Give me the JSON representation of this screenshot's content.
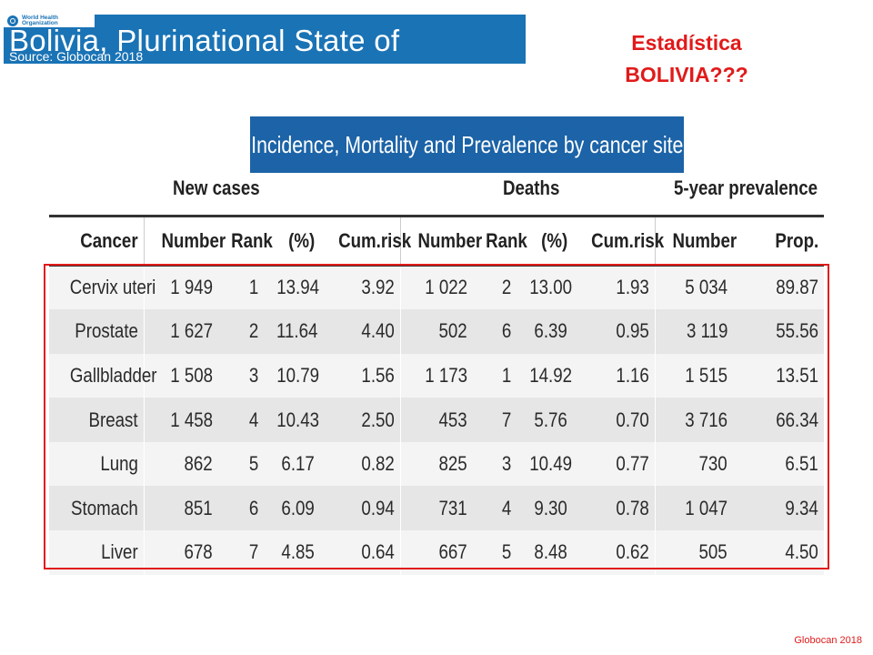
{
  "banner": {
    "who_line1": "World Health",
    "who_line2": "Organization",
    "country": "Bolivia, Plurinational State of",
    "source": "Source: Globocan 2018"
  },
  "slide_title": {
    "line1": "Estadística",
    "line2": "BOLIVIA???"
  },
  "panel_title": "Incidence, Mortality and Prevalence by cancer site",
  "groups": {
    "new_cases": "New cases",
    "deaths": "Deaths",
    "prevalence": "5-year prevalence"
  },
  "columns": [
    "Cancer",
    "Number",
    "Rank",
    "(%)",
    "Cum.risk",
    "Number",
    "Rank",
    "(%)",
    "Cum.risk",
    "Number",
    "Prop."
  ],
  "rows": [
    [
      "Cervix uteri",
      "1 949",
      "1",
      "13.94",
      "3.92",
      "1 022",
      "2",
      "13.00",
      "1.93",
      "5 034",
      "89.87"
    ],
    [
      "Prostate",
      "1 627",
      "2",
      "11.64",
      "4.40",
      "502",
      "6",
      "6.39",
      "0.95",
      "3 119",
      "55.56"
    ],
    [
      "Gallbladder",
      "1 508",
      "3",
      "10.79",
      "1.56",
      "1 173",
      "1",
      "14.92",
      "1.16",
      "1 515",
      "13.51"
    ],
    [
      "Breast",
      "1 458",
      "4",
      "10.43",
      "2.50",
      "453",
      "7",
      "5.76",
      "0.70",
      "3 716",
      "66.34"
    ],
    [
      "Lung",
      "862",
      "5",
      "6.17",
      "0.82",
      "825",
      "3",
      "10.49",
      "0.77",
      "730",
      "6.51"
    ],
    [
      "Stomach",
      "851",
      "6",
      "6.09",
      "0.94",
      "731",
      "4",
      "9.30",
      "0.78",
      "1 047",
      "9.34"
    ],
    [
      "Liver",
      "678",
      "7",
      "4.85",
      "0.64",
      "667",
      "5",
      "8.48",
      "0.62",
      "505",
      "4.50"
    ]
  ],
  "footer": "Globocan 2018",
  "colors": {
    "banner_blue": "#1a73b5",
    "panel_blue": "#1c63a7",
    "accent_red": "#e11a1a"
  }
}
